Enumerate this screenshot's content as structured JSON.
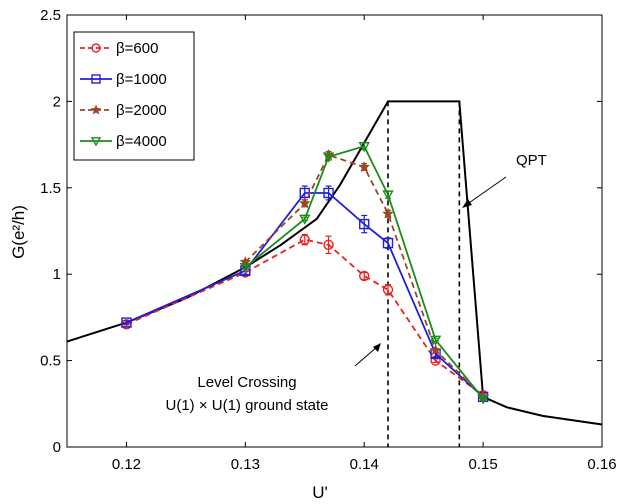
{
  "chart_data": {
    "type": "line",
    "xlabel": "U'",
    "ylabel": "G(e²/h)",
    "xlim": [
      0.115,
      0.16
    ],
    "ylim": [
      0,
      2.5
    ],
    "xticks": [
      "0.12",
      "0.13",
      "0.14",
      "0.15",
      "0.16"
    ],
    "yticks": [
      "0",
      "0.5",
      "1",
      "1.5",
      "2",
      "2.5"
    ],
    "grid": false,
    "legend_position": "top-left",
    "series": [
      {
        "name": "β=600",
        "color": "#e8231e",
        "marker": "circle",
        "line": "dashed",
        "points": [
          {
            "x": 0.12,
            "y": 0.71,
            "err": 0.01
          },
          {
            "x": 0.13,
            "y": 1.01,
            "err": 0.02
          },
          {
            "x": 0.135,
            "y": 1.2,
            "err": 0.03
          },
          {
            "x": 0.137,
            "y": 1.17,
            "err": 0.05
          },
          {
            "x": 0.14,
            "y": 0.99,
            "err": 0.02
          },
          {
            "x": 0.142,
            "y": 0.91,
            "err": 0.03
          },
          {
            "x": 0.146,
            "y": 0.5,
            "err": 0.01
          },
          {
            "x": 0.15,
            "y": 0.3,
            "err": 0.01
          }
        ]
      },
      {
        "name": "β=1000",
        "color": "#1f1fdb",
        "marker": "square",
        "line": "solid",
        "points": [
          {
            "x": 0.12,
            "y": 0.72,
            "err": 0.01
          },
          {
            "x": 0.13,
            "y": 1.02,
            "err": 0.02
          },
          {
            "x": 0.135,
            "y": 1.47,
            "err": 0.04
          },
          {
            "x": 0.137,
            "y": 1.47,
            "err": 0.04
          },
          {
            "x": 0.14,
            "y": 1.29,
            "err": 0.05
          },
          {
            "x": 0.142,
            "y": 1.18,
            "err": 0.03
          },
          {
            "x": 0.146,
            "y": 0.54,
            "err": 0.02
          },
          {
            "x": 0.15,
            "y": 0.29,
            "err": 0.01
          }
        ]
      },
      {
        "name": "β=2000",
        "color": "#9e4524",
        "marker": "star",
        "line": "dashed",
        "points": [
          {
            "x": 0.13,
            "y": 1.07,
            "err": 0.01
          },
          {
            "x": 0.135,
            "y": 1.41,
            "err": 0.02
          },
          {
            "x": 0.137,
            "y": 1.69,
            "err": 0.02
          },
          {
            "x": 0.14,
            "y": 1.62,
            "err": 0.02
          },
          {
            "x": 0.142,
            "y": 1.35,
            "err": 0.02
          },
          {
            "x": 0.146,
            "y": 0.56,
            "err": 0.01
          },
          {
            "x": 0.15,
            "y": 0.29,
            "err": 0.01
          }
        ]
      },
      {
        "name": "β=4000",
        "color": "#1a8c1a",
        "marker": "triangle-down",
        "line": "solid",
        "points": [
          {
            "x": 0.13,
            "y": 1.04,
            "err": 0.01
          },
          {
            "x": 0.135,
            "y": 1.32,
            "err": 0.01
          },
          {
            "x": 0.137,
            "y": 1.68,
            "err": 0.02
          },
          {
            "x": 0.14,
            "y": 1.74,
            "err": 0.02
          },
          {
            "x": 0.142,
            "y": 1.46,
            "err": 0.02
          },
          {
            "x": 0.146,
            "y": 0.62,
            "err": 0.01
          },
          {
            "x": 0.15,
            "y": 0.28,
            "err": 0.01
          }
        ]
      }
    ],
    "reference_curve": {
      "color": "#000000",
      "x": [
        0.115,
        0.12,
        0.125,
        0.13,
        0.133,
        0.136,
        0.138,
        0.14,
        0.142,
        0.142,
        0.144,
        0.146,
        0.148,
        0.15,
        0.152,
        0.155,
        0.16
      ],
      "y": [
        0.61,
        0.72,
        0.86,
        1.04,
        1.17,
        1.32,
        1.52,
        1.76,
        2.0,
        2.0,
        2.0,
        2.0,
        2.0,
        0.29,
        0.23,
        0.18,
        0.13
      ]
    },
    "vertical_lines": [
      0.142,
      0.148
    ],
    "annotations": {
      "qpt": "QPT",
      "level_crossing": "Level Crossing",
      "ground_state": "U(1) × U(1) ground state"
    }
  }
}
